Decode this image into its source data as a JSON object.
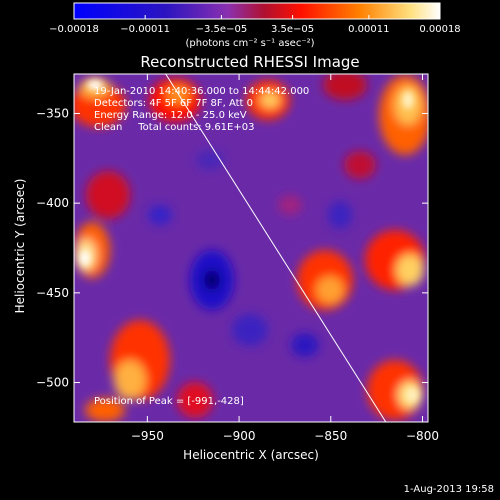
{
  "chart_data": {
    "type": "heatmap",
    "title": "Reconstructed RHESSI Image",
    "xlabel": "Heliocentric X (arcsec)",
    "ylabel": "Heliocentric Y (arcsec)",
    "xlim": [
      -990,
      -797
    ],
    "ylim": [
      -522,
      -328
    ],
    "xticks": [
      -950,
      -900,
      -850,
      -800
    ],
    "xtick_labels": [
      "−950",
      "−900",
      "−850",
      "−800"
    ],
    "yticks": [
      -350,
      -400,
      -450,
      -500
    ],
    "ytick_labels": [
      "−350",
      "−400",
      "−450",
      "−500"
    ],
    "colorbar": {
      "ticks": [
        -0.00018,
        -0.00011,
        -3.5e-05,
        3.5e-05,
        0.00011,
        0.00018
      ],
      "tick_labels": [
        "−0.00018",
        "−0.00011",
        "−3.5e−05",
        "3.5e−05",
        "0.00011",
        "0.00018"
      ],
      "units": "(photons cm⁻² s⁻¹ asec⁻²)",
      "range": [
        -0.00018,
        0.00018
      ]
    },
    "annotations": [
      "19-Jan-2010 14:40:36.000 to 14:44:42.000",
      "Detectors: 4F 5F 6F 7F 8F, Att 0",
      "Energy Range: 12.0 - 25.0 keV",
      "Clean     Total counts: 9.61E+03"
    ],
    "peak_label": "Position of Peak = [-991,-428]",
    "peak_position": [
      -991,
      -428
    ],
    "limb_line": [
      [
        -940,
        -328
      ],
      [
        -820,
        -522
      ]
    ],
    "grid": false
  },
  "footer": "1-Aug-2013 19:58",
  "colors": {
    "background": "#000000",
    "foreground": "#ffffff",
    "colormap": [
      "#0000ff",
      "#2b14c0",
      "#6a2aa8",
      "#9a32a0",
      "#c01040",
      "#ff0000",
      "#ff8000",
      "#ffe080",
      "#ffffff"
    ]
  }
}
